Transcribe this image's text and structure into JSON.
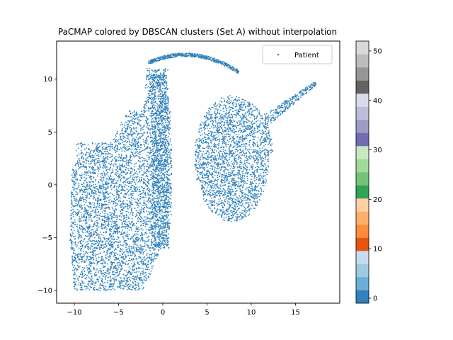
{
  "chart_data": {
    "type": "scatter",
    "title": "PaCMAP colored by DBSCAN clusters (Set A) without interpolation",
    "xlabel": "",
    "ylabel": "",
    "xlim": [
      -12,
      20
    ],
    "ylim": [
      -11.2,
      13.6
    ],
    "x_ticks": [
      -10,
      -5,
      0,
      5,
      10,
      15
    ],
    "y_ticks": [
      -10,
      -5,
      0,
      5,
      10
    ],
    "grid": false,
    "legend": {
      "position": "top-right",
      "entries": [
        "Patient"
      ]
    },
    "series": [
      {
        "name": "Patient",
        "color": "#3182bd",
        "regions": [
          {
            "label": "left lobe",
            "x": [
              -10.5,
              1.5
            ],
            "y": [
              -10,
              11
            ],
            "shape": "lobe"
          },
          {
            "label": "right lobe",
            "x": [
              3.5,
              14
            ],
            "y": [
              -3.5,
              10
            ],
            "shape": "lobe"
          },
          {
            "label": "top arc",
            "x": [
              -1.5,
              8.5
            ],
            "y": [
              10.5,
              12.4
            ],
            "shape": "arc"
          },
          {
            "label": "tail",
            "x": [
              12,
              17.3
            ],
            "y": [
              5.5,
              9.6
            ],
            "shape": "line"
          }
        ],
        "highlight_points_color": "#fd8d3c",
        "highlight_points": [
          [
            -1.5,
            11.0
          ],
          [
            -1.2,
            9.8
          ],
          [
            -1.0,
            8.6
          ],
          [
            -0.8,
            7.5
          ],
          [
            8.1,
            10.8
          ],
          [
            2.5,
            12.3
          ],
          [
            -0.5,
            4.0
          ]
        ]
      }
    ],
    "colorbar": {
      "ticks": [
        0,
        10,
        20,
        30,
        40,
        50
      ],
      "range": [
        -1,
        52
      ],
      "colormap": "tab20c",
      "colors": [
        "#3182bd",
        "#6baed6",
        "#9ecae1",
        "#c6dbef",
        "#e6550d",
        "#fd8d3c",
        "#fdae6b",
        "#fdd0a2",
        "#31a354",
        "#74c476",
        "#a1d99b",
        "#c7e9c0",
        "#756bb1",
        "#9e9ac8",
        "#bcbddc",
        "#dadaeb",
        "#636363",
        "#969696",
        "#bdbdbd",
        "#d9d9d9"
      ]
    }
  }
}
